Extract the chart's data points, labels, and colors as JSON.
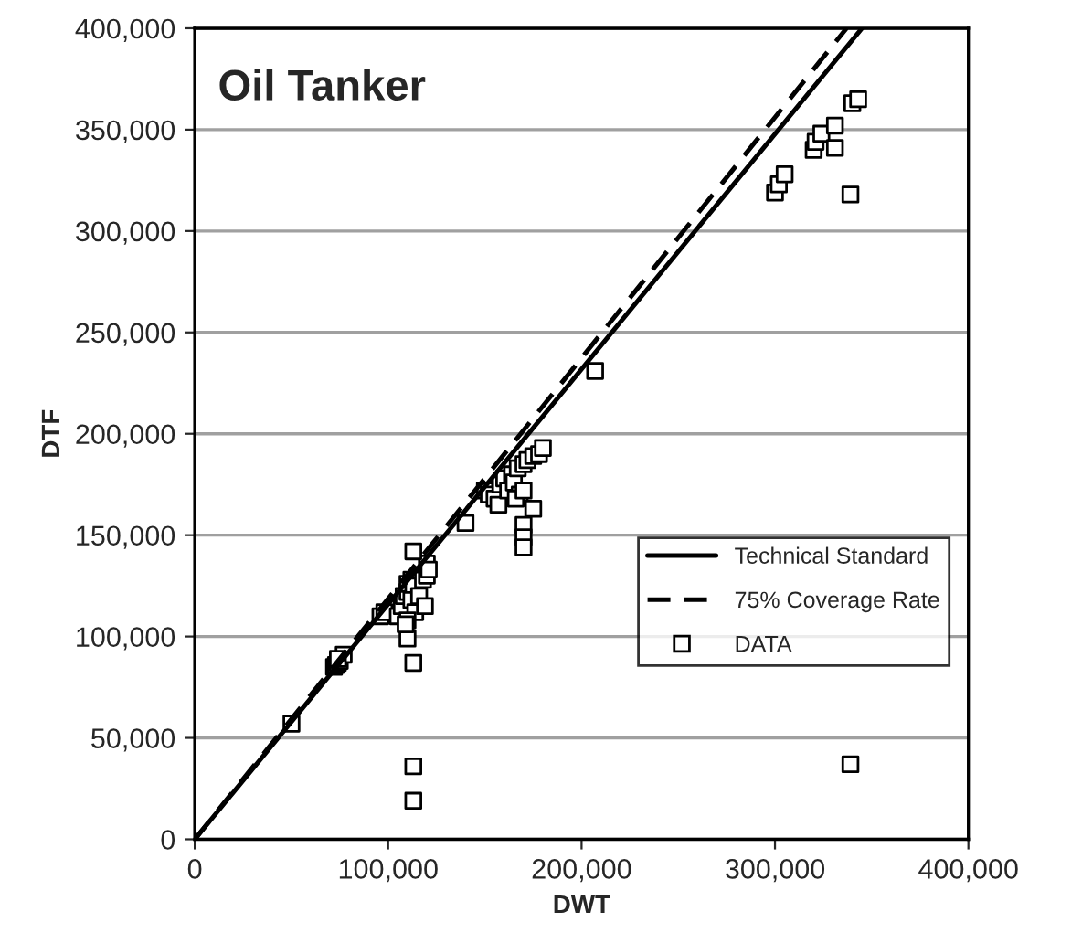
{
  "chart_data": {
    "type": "scatter",
    "title": "Oil Tanker",
    "xlabel": "DWT",
    "ylabel": "DTF",
    "xlim": [
      0,
      400000
    ],
    "ylim": [
      0,
      400000
    ],
    "xticks": [
      {
        "value": 0,
        "label": "0"
      },
      {
        "value": 100000,
        "label": "100,000"
      },
      {
        "value": 200000,
        "label": "200,000"
      },
      {
        "value": 300000,
        "label": "300,000"
      },
      {
        "value": 400000,
        "label": "400,000"
      }
    ],
    "yticks": [
      {
        "value": 0,
        "label": "0"
      },
      {
        "value": 50000,
        "label": "50,000"
      },
      {
        "value": 100000,
        "label": "100,000"
      },
      {
        "value": 150000,
        "label": "150,000"
      },
      {
        "value": 200000,
        "label": "200,000"
      },
      {
        "value": 250000,
        "label": "250,000"
      },
      {
        "value": 300000,
        "label": "300,000"
      },
      {
        "value": 350000,
        "label": "350,000"
      },
      {
        "value": 400000,
        "label": "400,000"
      }
    ],
    "grid": "y",
    "legend": "bottom right",
    "series": [
      {
        "name": "Technical Standard",
        "type": "line",
        "line_style": "solid",
        "marker": "none",
        "color": "#000000",
        "x": [
          0,
          345000
        ],
        "values": [
          0,
          400000
        ]
      },
      {
        "name": "75% Coverage Rate",
        "type": "line",
        "line_style": "dashed",
        "marker": "none",
        "color": "#000000",
        "x": [
          0,
          337000
        ],
        "values": [
          0,
          400000
        ]
      },
      {
        "name": "DATA",
        "marker": "square",
        "color": "#000000",
        "x": [
          50000,
          72000,
          73000,
          74000,
          75000,
          77000,
          74000,
          96000,
          98000,
          110000,
          113000,
          113000,
          113000,
          105000,
          107000,
          108000,
          110000,
          110000,
          112000,
          113000,
          120000,
          112000,
          114000,
          116000,
          118000,
          120000,
          113000,
          110000,
          109000,
          119000,
          121000,
          140000,
          150000,
          152000,
          155000,
          157000,
          158000,
          160000,
          162000,
          164000,
          165000,
          167000,
          168000,
          170000,
          172000,
          175000,
          178000,
          180000,
          170000,
          170000,
          170000,
          175000,
          166000,
          170000,
          207000,
          300000,
          302000,
          305000,
          320000,
          321000,
          324000,
          331000,
          331000,
          339000,
          340000,
          343000,
          339000
        ],
        "values": [
          57000,
          85000,
          86000,
          87000,
          88000,
          91000,
          89000,
          110000,
          112000,
          99000,
          87000,
          36000,
          19000,
          110000,
          115000,
          120000,
          122000,
          126000,
          128000,
          125000,
          136000,
          118000,
          112000,
          120000,
          128000,
          130000,
          142000,
          108000,
          106000,
          115000,
          133000,
          156000,
          172000,
          170000,
          168000,
          165000,
          175000,
          178000,
          172000,
          180000,
          176000,
          183000,
          170000,
          185000,
          187000,
          189000,
          190000,
          193000,
          155000,
          149000,
          144000,
          163000,
          168000,
          172000,
          231000,
          319000,
          323000,
          328000,
          340000,
          344000,
          348000,
          352000,
          341000,
          318000,
          363000,
          365000,
          37000
        ]
      }
    ]
  }
}
